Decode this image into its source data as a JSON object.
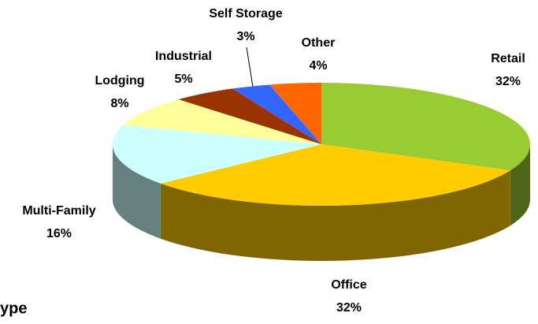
{
  "chart_data": {
    "type": "pie",
    "categories": [
      "Retail",
      "Office",
      "Multi-Family",
      "Lodging",
      "Industrial",
      "Self Storage",
      "Other"
    ],
    "values": [
      32,
      32,
      16,
      8,
      5,
      3,
      4
    ],
    "value_labels": [
      "32%",
      "32%",
      "16%",
      "8%",
      "5%",
      "3%",
      "4%"
    ],
    "colors": [
      "#99cc33",
      "#ffcc00",
      "#ccffff",
      "#ffff99",
      "#993300",
      "#3366ff",
      "#ff6600"
    ],
    "annotation": "ype"
  }
}
